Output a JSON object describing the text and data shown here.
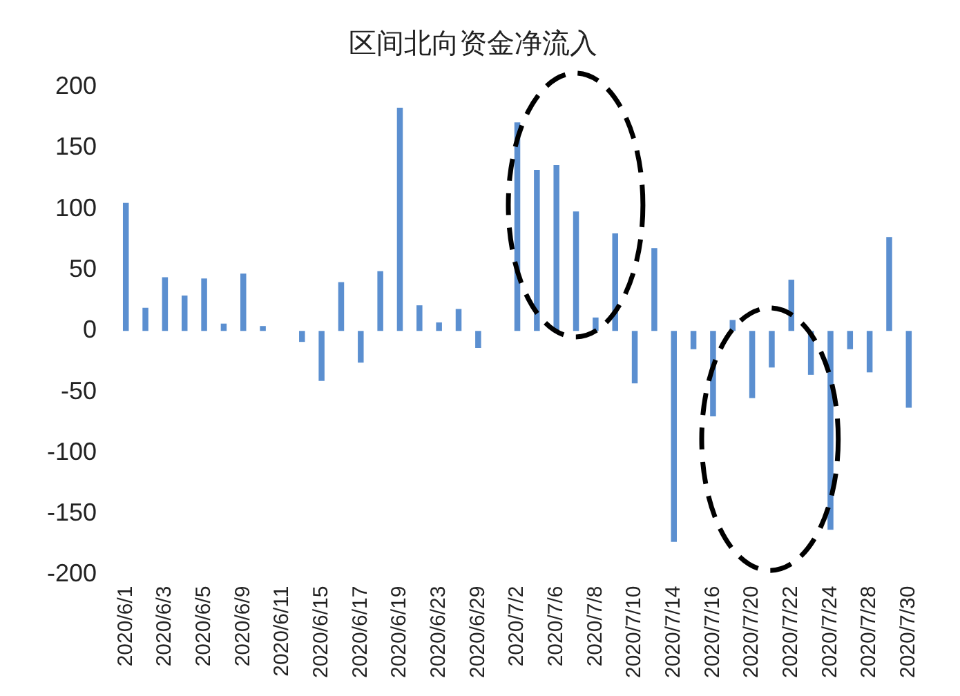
{
  "chart_data": {
    "type": "bar",
    "title": "区间北向资金净流入",
    "categories": [
      "2020/6/1",
      null,
      "2020/6/3",
      null,
      "2020/6/5",
      null,
      "2020/6/9",
      null,
      "2020/6/11",
      null,
      "2020/6/15",
      null,
      "2020/6/17",
      null,
      "2020/6/19",
      null,
      "2020/6/23",
      null,
      "2020/6/29",
      null,
      "2020/7/2",
      null,
      "2020/7/6",
      null,
      "2020/7/8",
      null,
      "2020/7/10",
      null,
      "2020/7/14",
      null,
      "2020/7/16",
      null,
      "2020/7/20",
      null,
      "2020/7/22",
      null,
      "2020/7/24",
      null,
      "2020/7/28",
      null,
      "2020/7/30"
    ],
    "values": [
      105,
      19,
      44,
      29,
      43,
      6,
      47,
      4,
      0,
      -9,
      -41,
      40,
      -26,
      49,
      183,
      21,
      7,
      18,
      -14,
      0,
      171,
      132,
      136,
      98,
      11,
      80,
      -43,
      68,
      -173,
      -15,
      -70,
      9,
      -55,
      -30,
      42,
      -36,
      -163,
      -15,
      -34,
      77,
      -63
    ],
    "color": "#5b8fd0",
    "ylim": [
      -200,
      200
    ],
    "yticks": [
      -200,
      -150,
      -100,
      -50,
      0,
      50,
      100,
      150,
      200
    ],
    "grid": false,
    "legend": false
  }
}
